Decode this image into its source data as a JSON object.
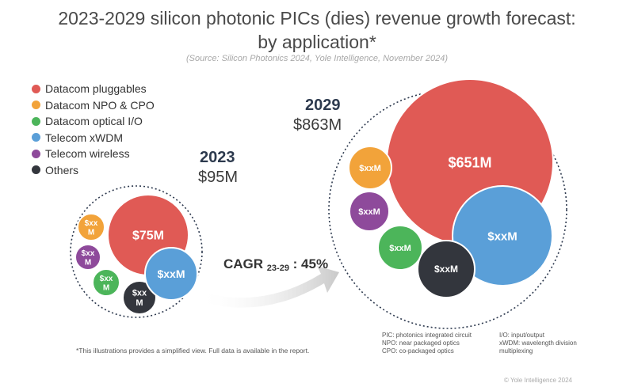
{
  "chart_data": {
    "type": "bubble",
    "title_line1": "2023-2029 silicon photonic PICs (dies) revenue growth forecast:",
    "title_line2": "by application*",
    "source": "(Source: Silicon Photonics 2024, Yole Intelligence, November 2024)",
    "legend": [
      {
        "label": "Datacom pluggables",
        "color": "#e05a55"
      },
      {
        "label": "Datacom NPO & CPO",
        "color": "#f2a33a"
      },
      {
        "label": "Datacom optical I/O",
        "color": "#4cb55a"
      },
      {
        "label": "Telecom xWDM",
        "color": "#5a9fd8"
      },
      {
        "label": "Telecom wireless",
        "color": "#8e4a9b"
      },
      {
        "label": "Others",
        "color": "#33363d"
      }
    ],
    "groups": [
      {
        "year": "2023",
        "total_label": "$95M",
        "total_value": 95,
        "bubbles": [
          {
            "category": "Datacom pluggables",
            "label": "$75M",
            "value": 75,
            "label_lines": [
              "$75M"
            ]
          },
          {
            "category": "Datacom NPO & CPO",
            "label": "$xxM",
            "value": null,
            "label_lines": [
              "$xx",
              "M"
            ]
          },
          {
            "category": "Telecom wireless",
            "label": "$xxM",
            "value": null,
            "label_lines": [
              "$xx",
              "M"
            ]
          },
          {
            "category": "Datacom optical I/O",
            "label": "$xxM",
            "value": null,
            "label_lines": [
              "$xx",
              "M"
            ]
          },
          {
            "category": "Others",
            "label": "$xxM",
            "value": null,
            "label_lines": [
              "$xx",
              "M"
            ]
          },
          {
            "category": "Telecom xWDM",
            "label": "$xxM",
            "value": null,
            "label_lines": [
              "$xxM"
            ]
          }
        ]
      },
      {
        "year": "2029",
        "total_label": "$863M",
        "total_value": 863,
        "bubbles": [
          {
            "category": "Datacom pluggables",
            "label": "$651M",
            "value": 651,
            "label_lines": [
              "$651M"
            ]
          },
          {
            "category": "Telecom xWDM",
            "label": "$xxM",
            "value": null,
            "label_lines": [
              "$xxM"
            ]
          },
          {
            "category": "Datacom NPO & CPO",
            "label": "$xxM",
            "value": null,
            "label_lines": [
              "$xxM"
            ]
          },
          {
            "category": "Telecom wireless",
            "label": "$xxM",
            "value": null,
            "label_lines": [
              "$xxM"
            ]
          },
          {
            "category": "Datacom optical I/O",
            "label": "$xxM",
            "value": null,
            "label_lines": [
              "$xxM"
            ]
          },
          {
            "category": "Others",
            "label": "$xxM",
            "value": null,
            "label_lines": [
              "$xxM"
            ]
          }
        ]
      }
    ],
    "cagr": {
      "prefix": "CAGR",
      "period": "23-29",
      "suffix": ": 45%",
      "value": 45
    }
  },
  "footnote": "*This illustrations provides a simplified view. Full data is available in the report.",
  "glossary": [
    {
      "left": "PIC: photonics integrated circuit",
      "right": "I/O: input/output"
    },
    {
      "left": "NPO: near packaged optics",
      "right": "xWDM: wavelength division"
    },
    {
      "left": "CPO: co-packaged optics",
      "right": "multiplexing"
    }
  ],
  "copyright": "© Yole Intelligence 2024"
}
